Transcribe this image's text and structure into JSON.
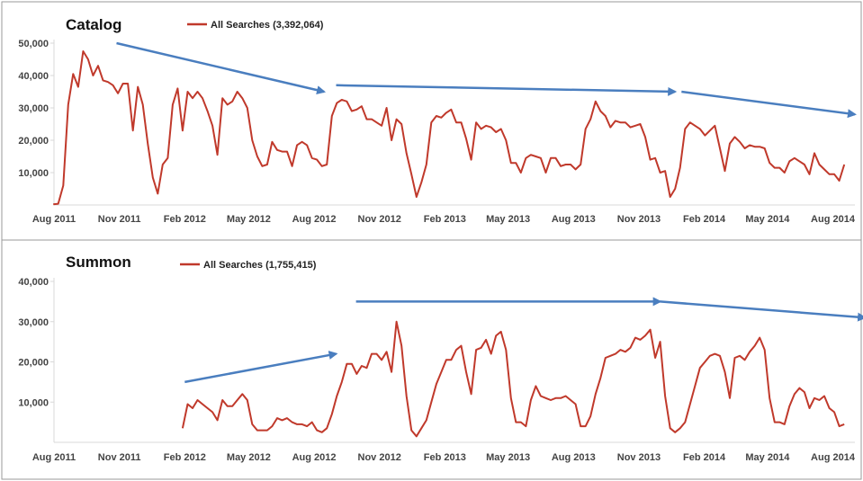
{
  "colors": {
    "series": "#c0392b",
    "arrow": "#4a7ebf",
    "frame": "#9a9a9a",
    "grid": "#d9d9d9"
  },
  "x_ticks": [
    "Aug 2011",
    "Nov 2011",
    "Feb 2012",
    "May 2012",
    "Aug 2012",
    "Nov 2012",
    "Feb 2013",
    "May 2013",
    "Aug 2013",
    "Nov 2013",
    "Feb 2014",
    "May 2014",
    "Aug 2014"
  ],
  "chart_data": [
    {
      "type": "line",
      "title": "Catalog",
      "xlabel": "",
      "ylabel": "",
      "ylim": [
        0,
        50000
      ],
      "y_ticks": [
        "50,000",
        "40,000",
        "30,000",
        "20,000",
        "10,000"
      ],
      "y_tick_values": [
        50000,
        40000,
        30000,
        20000,
        10000
      ],
      "grid": false,
      "legend": "top",
      "series": [
        {
          "name": "All Searches (3,392,064)",
          "x_start": "2011-07-31",
          "interval": "weekly",
          "values": [
            200,
            400,
            6000,
            31000,
            40500,
            36500,
            47500,
            45000,
            40000,
            43000,
            38500,
            38000,
            37000,
            34500,
            37500,
            37500,
            23000,
            36500,
            31000,
            19000,
            8500,
            3500,
            12500,
            14500,
            31000,
            36000,
            23000,
            35000,
            33000,
            35000,
            33000,
            29000,
            24500,
            15500,
            33000,
            31000,
            32000,
            35000,
            33000,
            30000,
            20000,
            15000,
            12000,
            12500,
            19500,
            17000,
            16500,
            16500,
            12000,
            18500,
            19500,
            18500,
            14500,
            14000,
            12000,
            12500,
            27500,
            31500,
            32500,
            32000,
            29000,
            29500,
            30500,
            26500,
            26500,
            25500,
            24500,
            30000,
            20000,
            26500,
            25000,
            16000,
            9500,
            2500,
            7000,
            12500,
            25500,
            27500,
            27000,
            28500,
            29500,
            25500,
            25500,
            20500,
            14000,
            25500,
            23500,
            24500,
            24000,
            22500,
            23500,
            20000,
            13000,
            13000,
            10000,
            14500,
            15500,
            15000,
            14500,
            10000,
            14500,
            14500,
            12000,
            12500,
            12500,
            11000,
            12500,
            23500,
            26500,
            32000,
            29000,
            27500,
            24000,
            26000,
            25500,
            25500,
            24000,
            24500,
            25000,
            21000,
            14000,
            14500,
            10000,
            10500,
            2500,
            5000,
            11500,
            23500,
            25500,
            24500,
            23500,
            21500,
            23000,
            24500,
            17500,
            10500,
            19000,
            21000,
            19500,
            17500,
            18500,
            18000,
            18000,
            17500,
            13000,
            11500,
            11500,
            10000,
            13500,
            14500,
            13500,
            12500,
            9500,
            16000,
            12500,
            11000,
            9500,
            9500,
            7500,
            12500
          ]
        }
      ],
      "trend_arrows": [
        {
          "x0": "2011-10-28",
          "y0": 50000,
          "x1": "2012-08-15",
          "y1": 35000
        },
        {
          "x0": "2012-09-01",
          "y0": 37000,
          "x1": "2013-12-22",
          "y1": 35000
        },
        {
          "x0": "2013-12-31",
          "y0": 35000,
          "x1": "2014-09-01",
          "y1": 28000
        }
      ]
    },
    {
      "type": "line",
      "title": "Summon",
      "xlabel": "",
      "ylabel": "",
      "ylim": [
        0,
        40000
      ],
      "y_ticks": [
        "40,000",
        "30,000",
        "20,000",
        "10,000"
      ],
      "y_tick_values": [
        40000,
        30000,
        20000,
        10000
      ],
      "grid": false,
      "legend": "top",
      "series": [
        {
          "name": "All Searches (1,755,415)",
          "x_start": "2012-01-29",
          "interval": "weekly",
          "values": [
            3500,
            9500,
            8500,
            10500,
            9500,
            8500,
            7500,
            5500,
            10500,
            9000,
            9000,
            10500,
            12000,
            10500,
            4500,
            3000,
            3000,
            3000,
            4000,
            6000,
            5500,
            6000,
            5000,
            4500,
            4500,
            4000,
            5000,
            3000,
            2500,
            3500,
            7000,
            11500,
            15000,
            19500,
            19500,
            17000,
            19000,
            18500,
            22000,
            22000,
            20500,
            22500,
            17500,
            30000,
            24000,
            11500,
            3000,
            1500,
            3500,
            5500,
            10000,
            14500,
            17500,
            20500,
            20500,
            23000,
            24000,
            17500,
            12000,
            23000,
            23500,
            25500,
            22000,
            26500,
            27500,
            23000,
            11000,
            5000,
            5000,
            4000,
            10500,
            14000,
            11500,
            11000,
            10500,
            11000,
            11000,
            11500,
            10500,
            9500,
            4000,
            4000,
            6500,
            12000,
            16000,
            21000,
            21500,
            22000,
            23000,
            22500,
            23500,
            26000,
            25500,
            26500,
            28000,
            21000,
            25000,
            11500,
            3500,
            2500,
            3500,
            5000,
            9500,
            14000,
            18500,
            20000,
            21500,
            22000,
            21500,
            17500,
            11000,
            21000,
            21500,
            20500,
            22500,
            24000,
            26000,
            23000,
            11000,
            5000,
            5000,
            4500,
            9000,
            12000,
            13500,
            12500,
            8500,
            11000,
            10500,
            11500,
            8500,
            7500,
            4000,
            4500
          ]
        }
      ],
      "trend_arrows": [
        {
          "x0": "2012-02-01",
          "y0": 15000,
          "x1": "2012-09-01",
          "y1": 22000
        },
        {
          "x0": "2012-09-29",
          "y0": 35000,
          "x1": "2013-12-01",
          "y1": 35000
        },
        {
          "x0": "2013-12-01",
          "y0": 35000,
          "x1": "2014-09-15",
          "y1": 31000
        }
      ]
    }
  ]
}
